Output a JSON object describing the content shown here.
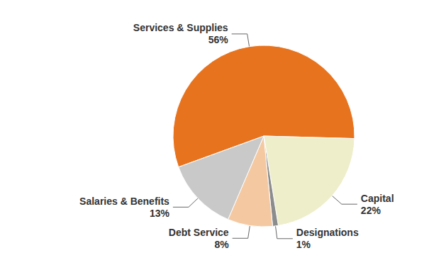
{
  "chart_data": {
    "type": "pie",
    "categories": [
      "Services & Supplies",
      "Capital",
      "Designations",
      "Debt Service",
      "Salaries & Benefits"
    ],
    "values": [
      56,
      22,
      1,
      8,
      13
    ],
    "value_labels": [
      "56%",
      "22%",
      "1%",
      "8%",
      "13%"
    ],
    "colors": [
      "#e8731e",
      "#eeeecb",
      "#8c8c8c",
      "#f4c9a2",
      "#c9c9c9"
    ],
    "data_labels": true
  }
}
